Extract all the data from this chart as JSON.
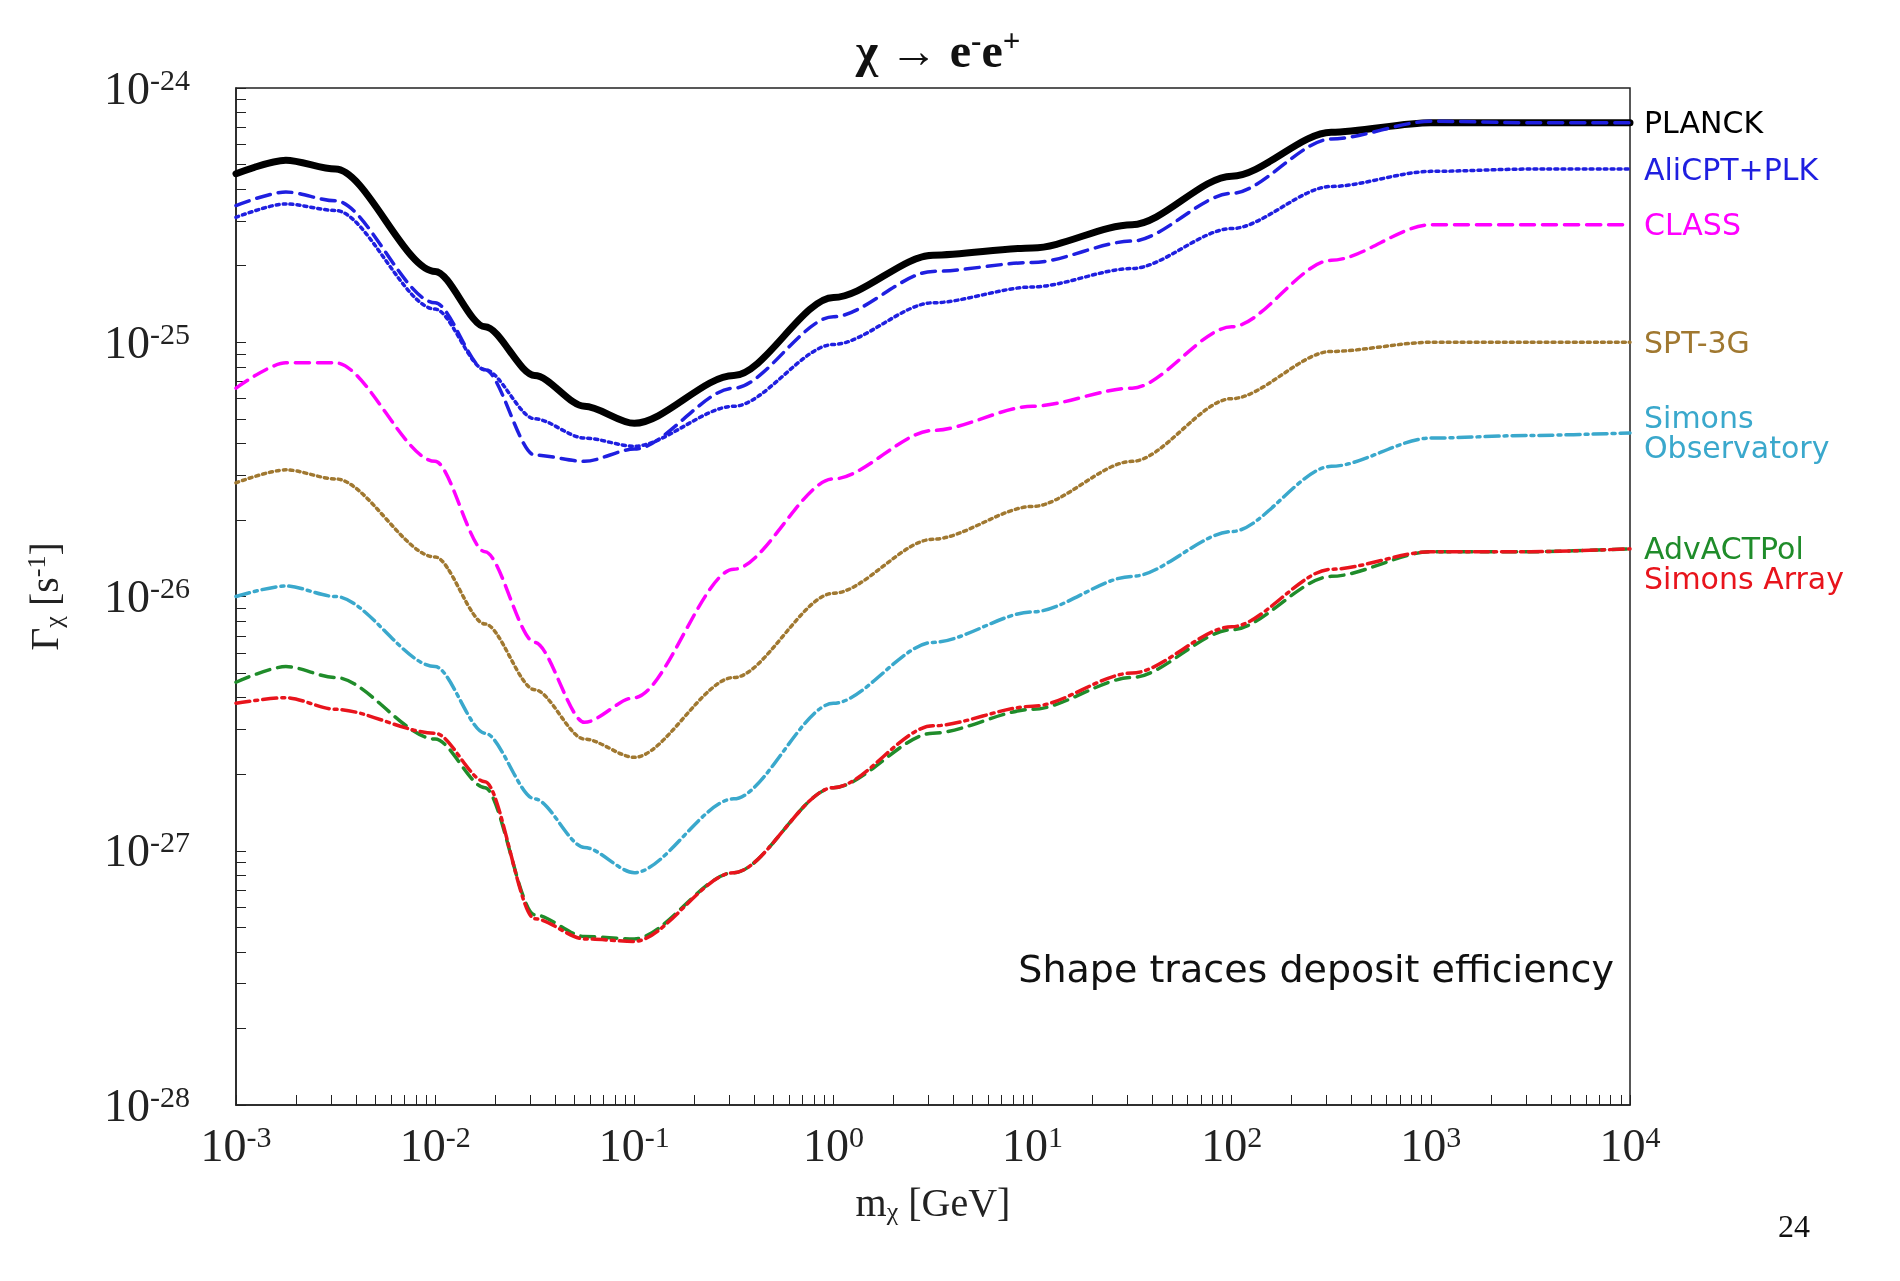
{
  "chart_data": {
    "type": "line",
    "title": "χ → e$^{-}$e$^{+}$",
    "xlabel": "m$_{χ}$ [GeV]",
    "ylabel": "Γ$_{χ}$ [s$^{-1}$]",
    "log": "xy",
    "grid": false,
    "legend": false,
    "marker": "none",
    "annotations": [
      "Shape traces deposit efficiency",
      "24"
    ],
    "xlim": [
      0.001,
      10000
    ],
    "ylim": [
      1e-28,
      1e-24
    ],
    "xticks": [
      {
        "value": 0.001,
        "label": "10$^{-3}$"
      },
      {
        "value": 0.01,
        "label": "10$^{-2}$"
      },
      {
        "value": 0.1,
        "label": "10$^{-1}$"
      },
      {
        "value": 1,
        "label": "10$^{0}$"
      },
      {
        "value": 10,
        "label": "10$^{1}$"
      },
      {
        "value": 100,
        "label": "10$^{2}$"
      },
      {
        "value": 1000,
        "label": "10$^{3}$"
      },
      {
        "value": 10000,
        "label": "10$^{4}$"
      }
    ],
    "yticks": [
      {
        "value": 1e-28,
        "label": "10$^{-28}$"
      },
      {
        "value": 1e-27,
        "label": "10$^{-27}$"
      },
      {
        "value": 1e-26,
        "label": "10$^{-26}$"
      },
      {
        "value": 1e-25,
        "label": "10$^{-25}$"
      },
      {
        "value": 1e-24,
        "label": "10$^{-24}$"
      }
    ],
    "x": [
      0.001,
      0.00178,
      0.00316,
      0.01,
      0.0178,
      0.0316,
      0.0562,
      0.1,
      0.316,
      1,
      3.16,
      10,
      31.6,
      100,
      316,
      1000,
      3160,
      10000
    ],
    "series": [
      {
        "name": "PLANCK",
        "color": "#000000",
        "line_style": "solid",
        "values": [
          4.6e-25,
          5.2e-25,
          4.8e-25,
          1.9e-25,
          1.15e-25,
          7.4e-26,
          5.6e-26,
          4.8e-26,
          7.4e-26,
          1.5e-25,
          2.2e-25,
          2.35e-25,
          2.9e-25,
          4.5e-25,
          6.7e-25,
          7.3e-25,
          7.3e-25,
          7.3e-25
        ]
      },
      {
        "color": "#1f1fe0",
        "line_style": "dashed",
        "values": [
          3.45e-25,
          3.9e-25,
          3.6e-25,
          1.43e-25,
          7.8e-26,
          3.6e-26,
          3.4e-26,
          3.8e-26,
          6.6e-26,
          1.26e-25,
          1.9e-25,
          2.06e-25,
          2.5e-25,
          3.85e-25,
          6.3e-25,
          7.4e-25,
          7.3e-25,
          7.3e-25
        ]
      },
      {
        "name": "AliCPT+PLK",
        "color": "#1f1fe0",
        "line_style": "dotted",
        "values": [
          3.1e-25,
          3.5e-25,
          3.3e-25,
          1.35e-25,
          7.8e-26,
          5e-26,
          4.2e-26,
          3.9e-26,
          5.6e-26,
          9.8e-26,
          1.43e-25,
          1.65e-25,
          1.95e-25,
          2.8e-25,
          4.1e-25,
          4.7e-25,
          4.8e-25,
          4.8e-25
        ]
      },
      {
        "name": "CLASS",
        "color": "#ff00ff",
        "line_style": "dashed",
        "values": [
          6.6e-26,
          8.3e-26,
          8.3e-26,
          3.4e-26,
          1.5e-26,
          6.6e-27,
          3.2e-27,
          4e-27,
          1.28e-26,
          2.9e-26,
          4.5e-26,
          5.6e-26,
          6.6e-26,
          1.15e-25,
          2.1e-25,
          2.9e-25,
          2.9e-25,
          2.9e-25
        ]
      },
      {
        "name": "SPT-3G",
        "color": "#a07830",
        "line_style": "dotted",
        "values": [
          2.8e-26,
          3.15e-26,
          2.9e-26,
          1.43e-26,
          7.8e-27,
          4.3e-27,
          2.75e-27,
          2.33e-27,
          4.8e-27,
          1.03e-26,
          1.68e-26,
          2.26e-26,
          3.4e-26,
          6e-26,
          9.2e-26,
          1e-25,
          1e-25,
          1e-25
        ]
      },
      {
        "name": "Simons Observatory",
        "color": "#3aa8cc",
        "line_style": "dashdot",
        "values": [
          1e-26,
          1.1e-26,
          1e-26,
          5.3e-27,
          2.9e-27,
          1.6e-27,
          1.03e-27,
          8.2e-28,
          1.6e-27,
          3.8e-27,
          6.6e-27,
          8.7e-27,
          1.2e-26,
          1.8e-26,
          3.25e-26,
          4.2e-26,
          4.3e-26,
          4.4e-26
        ]
      },
      {
        "name": "AdvACTPol",
        "color": "#1f8c2a",
        "line_style": "dashed",
        "values": [
          4.6e-27,
          5.3e-27,
          4.8e-27,
          2.75e-27,
          1.77e-27,
          5.6e-28,
          4.6e-28,
          4.5e-28,
          8.2e-28,
          1.77e-27,
          2.9e-27,
          3.6e-27,
          4.8e-27,
          7.4e-27,
          1.2e-26,
          1.5e-26,
          1.5e-26,
          1.54e-26
        ]
      },
      {
        "name": "Simons Array",
        "color": "#e8141c",
        "line_style": "dashdot",
        "values": [
          3.8e-27,
          4e-27,
          3.6e-27,
          2.9e-27,
          1.87e-27,
          5.4e-28,
          4.5e-28,
          4.4e-28,
          8.2e-28,
          1.77e-27,
          3.1e-27,
          3.7e-27,
          5e-27,
          7.6e-27,
          1.28e-26,
          1.5e-26,
          1.5e-26,
          1.54e-26
        ]
      }
    ]
  }
}
